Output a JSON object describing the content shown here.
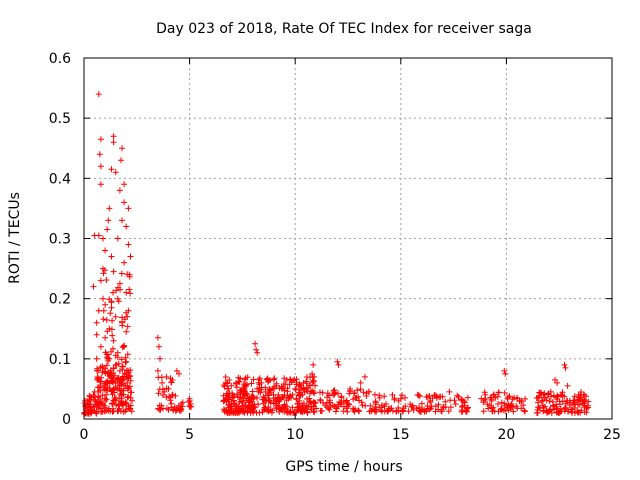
{
  "chart_data": {
    "type": "scatter",
    "title": "Day 023 of 2018, Rate Of TEC Index for receiver saga",
    "xlabel": "GPS time / hours",
    "ylabel": "ROTI / TECUs",
    "xlim": [
      0,
      25
    ],
    "ylim": [
      0,
      0.6
    ],
    "x_ticks": [
      0,
      5,
      10,
      15,
      20,
      25
    ],
    "x_tick_labels": [
      "0",
      "5",
      "10",
      "15",
      "20",
      "25"
    ],
    "y_ticks": [
      0,
      0.1,
      0.2,
      0.3,
      0.4,
      0.5,
      0.6
    ],
    "y_tick_labels": [
      "0",
      "0.1",
      "0.2",
      "0.3",
      "0.4",
      "0.5",
      "0.6"
    ],
    "grid": true,
    "marker": "+",
    "series": [
      {
        "name": "ROTI",
        "color": "#ff0000",
        "points": [
          [
            0.7,
            0.54
          ],
          [
            1.4,
            0.47
          ],
          [
            1.4,
            0.46
          ],
          [
            1.8,
            0.45
          ],
          [
            1.75,
            0.43
          ],
          [
            0.8,
            0.465
          ],
          [
            0.75,
            0.44
          ],
          [
            0.8,
            0.42
          ],
          [
            1.3,
            0.415
          ],
          [
            1.5,
            0.41
          ],
          [
            1.9,
            0.39
          ],
          [
            0.8,
            0.39
          ],
          [
            1.7,
            0.38
          ],
          [
            1.9,
            0.36
          ],
          [
            2.1,
            0.35
          ],
          [
            1.2,
            0.35
          ],
          [
            1.15,
            0.33
          ],
          [
            1.8,
            0.33
          ],
          [
            2.0,
            0.32
          ],
          [
            1.1,
            0.315
          ],
          [
            0.5,
            0.305
          ],
          [
            0.7,
            0.305
          ],
          [
            0.9,
            0.3
          ],
          [
            1.6,
            0.3
          ],
          [
            2.1,
            0.29
          ],
          [
            1.0,
            0.28
          ],
          [
            1.3,
            0.27
          ],
          [
            2.2,
            0.27
          ],
          [
            1.9,
            0.26
          ],
          [
            0.9,
            0.25
          ],
          [
            1.4,
            0.245
          ],
          [
            2.15,
            0.24
          ],
          [
            0.8,
            0.23
          ],
          [
            1.7,
            0.225
          ],
          [
            0.45,
            0.22
          ],
          [
            2.0,
            0.21
          ],
          [
            0.9,
            0.2
          ],
          [
            1.6,
            0.2
          ],
          [
            1.0,
            0.19
          ],
          [
            1.3,
            0.185
          ],
          [
            2.1,
            0.18
          ],
          [
            0.7,
            0.18
          ],
          [
            1.5,
            0.17
          ],
          [
            0.6,
            0.16
          ],
          [
            1.8,
            0.16
          ],
          [
            1.2,
            0.15
          ],
          [
            2.0,
            0.145
          ],
          [
            0.6,
            0.14
          ],
          [
            1.0,
            0.135
          ],
          [
            1.4,
            0.13
          ],
          [
            1.9,
            0.12
          ],
          [
            0.8,
            0.12
          ],
          [
            1.6,
            0.11
          ],
          [
            1.2,
            0.1
          ],
          [
            0.6,
            0.1
          ],
          [
            2.0,
            0.095
          ],
          [
            1.5,
            0.09
          ],
          [
            0.9,
            0.085
          ],
          [
            1.7,
            0.08
          ],
          [
            1.3,
            0.075
          ],
          [
            2.1,
            0.07
          ],
          [
            0.7,
            0.065
          ],
          [
            1.1,
            0.06
          ],
          [
            1.9,
            0.055
          ],
          [
            1.4,
            0.05
          ],
          [
            0.5,
            0.045
          ],
          [
            1.8,
            0.04
          ],
          [
            2.2,
            0.035
          ],
          [
            1.0,
            0.03
          ],
          [
            0.05,
            0.03
          ],
          [
            0.2,
            0.02
          ],
          [
            0.35,
            0.035
          ],
          [
            0.1,
            0.015
          ],
          [
            0.3,
            0.025
          ],
          [
            0.45,
            0.04
          ],
          [
            0.15,
            0.03
          ],
          [
            1.6,
            0.055
          ],
          [
            2.05,
            0.06
          ],
          [
            3.5,
            0.135
          ],
          [
            3.55,
            0.12
          ],
          [
            3.6,
            0.1
          ],
          [
            3.5,
            0.08
          ],
          [
            3.9,
            0.07
          ],
          [
            3.7,
            0.06
          ],
          [
            4.0,
            0.05
          ],
          [
            4.2,
            0.04
          ],
          [
            3.8,
            0.045
          ],
          [
            4.1,
            0.035
          ],
          [
            4.4,
            0.08
          ],
          [
            4.5,
            0.075
          ],
          [
            4.3,
            0.02
          ],
          [
            4.6,
            0.025
          ],
          [
            4.4,
            0.015
          ],
          [
            5.0,
            0.03
          ],
          [
            5.05,
            0.025
          ],
          [
            6.8,
            0.04
          ],
          [
            7.0,
            0.02
          ],
          [
            7.2,
            0.06
          ],
          [
            7.4,
            0.035
          ],
          [
            7.6,
            0.05
          ],
          [
            7.8,
            0.03
          ],
          [
            8.1,
            0.125
          ],
          [
            8.15,
            0.115
          ],
          [
            8.2,
            0.11
          ],
          [
            8.4,
            0.06
          ],
          [
            8.6,
            0.045
          ],
          [
            8.8,
            0.03
          ],
          [
            9.0,
            0.05
          ],
          [
            9.2,
            0.04
          ],
          [
            9.4,
            0.02
          ],
          [
            9.6,
            0.065
          ],
          [
            9.8,
            0.035
          ],
          [
            10.0,
            0.05
          ],
          [
            10.2,
            0.03
          ],
          [
            10.4,
            0.06
          ],
          [
            10.6,
            0.02
          ],
          [
            10.8,
            0.075
          ],
          [
            10.85,
            0.09
          ],
          [
            10.9,
            0.07
          ],
          [
            11.2,
            0.03
          ],
          [
            11.5,
            0.02
          ],
          [
            11.8,
            0.04
          ],
          [
            12.0,
            0.095
          ],
          [
            12.05,
            0.09
          ],
          [
            12.3,
            0.03
          ],
          [
            12.6,
            0.05
          ],
          [
            12.9,
            0.035
          ],
          [
            13.1,
            0.06
          ],
          [
            13.3,
            0.07
          ],
          [
            13.5,
            0.045
          ],
          [
            13.8,
            0.02
          ],
          [
            14.0,
            0.035
          ],
          [
            14.3,
            0.025
          ],
          [
            14.6,
            0.04
          ],
          [
            14.9,
            0.03
          ],
          [
            15.2,
            0.035
          ],
          [
            15.5,
            0.02
          ],
          [
            15.8,
            0.04
          ],
          [
            16.1,
            0.015
          ],
          [
            16.4,
            0.03
          ],
          [
            16.7,
            0.035
          ],
          [
            17.0,
            0.02
          ],
          [
            17.3,
            0.045
          ],
          [
            17.6,
            0.025
          ],
          [
            17.9,
            0.02
          ],
          [
            18.1,
            0.015
          ],
          [
            19.0,
            0.04
          ],
          [
            19.3,
            0.03
          ],
          [
            19.6,
            0.025
          ],
          [
            19.9,
            0.08
          ],
          [
            19.95,
            0.075
          ],
          [
            20.2,
            0.02
          ],
          [
            20.5,
            0.035
          ],
          [
            20.7,
            0.03
          ],
          [
            21.5,
            0.02
          ],
          [
            21.8,
            0.035
          ],
          [
            22.1,
            0.045
          ],
          [
            22.4,
            0.06
          ],
          [
            22.6,
            0.04
          ],
          [
            22.75,
            0.09
          ],
          [
            22.8,
            0.085
          ],
          [
            23.0,
            0.03
          ],
          [
            23.2,
            0.025
          ],
          [
            23.5,
            0.04
          ],
          [
            23.7,
            0.02
          ],
          [
            22.3,
            0.065
          ],
          [
            22.9,
            0.055
          ]
        ],
        "clusters": [
          {
            "x_range": [
              0.0,
              0.6
            ],
            "y_range": [
              0.008,
              0.04
            ],
            "count": 45
          },
          {
            "x_range": [
              0.6,
              2.3
            ],
            "y_range": [
              0.012,
              0.09
            ],
            "count": 150
          },
          {
            "x_range": [
              0.9,
              2.2
            ],
            "y_range": [
              0.05,
              0.25
            ],
            "count": 70
          },
          {
            "x_range": [
              3.5,
              4.2
            ],
            "y_range": [
              0.015,
              0.07
            ],
            "count": 25
          },
          {
            "x_range": [
              4.2,
              4.7
            ],
            "y_range": [
              0.012,
              0.04
            ],
            "count": 15
          },
          {
            "x_range": [
              4.9,
              5.1
            ],
            "y_range": [
              0.02,
              0.035
            ],
            "count": 5
          },
          {
            "x_range": [
              6.6,
              11.0
            ],
            "y_range": [
              0.01,
              0.07
            ],
            "count": 360
          },
          {
            "x_range": [
              11.1,
              13.8
            ],
            "y_range": [
              0.012,
              0.05
            ],
            "count": 80
          },
          {
            "x_range": [
              13.8,
              18.2
            ],
            "y_range": [
              0.012,
              0.04
            ],
            "count": 100
          },
          {
            "x_range": [
              18.8,
              20.9
            ],
            "y_range": [
              0.012,
              0.045
            ],
            "count": 60
          },
          {
            "x_range": [
              21.4,
              23.9
            ],
            "y_range": [
              0.01,
              0.045
            ],
            "count": 120
          }
        ]
      }
    ]
  }
}
